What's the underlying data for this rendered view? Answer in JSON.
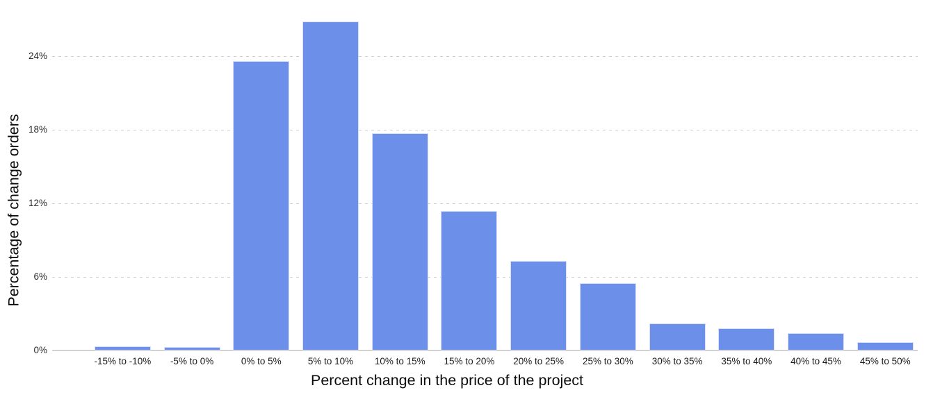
{
  "chart_data": {
    "type": "bar",
    "title": "",
    "xlabel": "Percent change in the price of the project",
    "ylabel": "Percentage of change orders",
    "categories": [
      "-15% to -10%",
      "-5% to 0%",
      "0% to 5%",
      "5% to 10%",
      "10% to 15%",
      "15% to 20%",
      "20% to 25%",
      "25% to 30%",
      "30% to 35%",
      "35% to 40%",
      "40% to 45%",
      "45% to 50%"
    ],
    "values": [
      0.35,
      0.3,
      23.6,
      26.8,
      17.7,
      11.4,
      7.3,
      5.5,
      2.2,
      1.8,
      1.4,
      0.7
    ],
    "y_ticks": [
      {
        "label": "0%",
        "value": 0
      },
      {
        "label": "6%",
        "value": 6
      },
      {
        "label": "12%",
        "value": 12
      },
      {
        "label": "18%",
        "value": 18
      },
      {
        "label": "24%",
        "value": 24
      }
    ],
    "ylim": [
      0,
      28.6
    ],
    "grid": "horizontal-dashed",
    "legend": "none",
    "colors": {
      "bar_fill": "#6c8fe9",
      "bar_border": "#d9dff4",
      "gridline": "#cfcfcf",
      "axis_line": "#d2d2d2",
      "tick_text": "#2a2a2a",
      "title_text": "#0d0d0d"
    }
  }
}
